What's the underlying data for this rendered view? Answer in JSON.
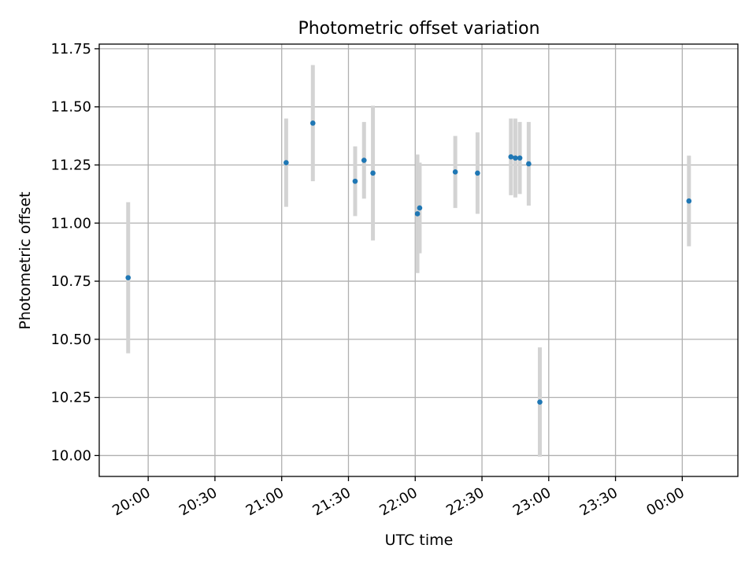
{
  "chart_data": {
    "type": "scatter",
    "title": "Photometric offset variation",
    "xlabel": "UTC time",
    "ylabel": "Photometric offset",
    "xlim": [
      "19:38",
      "00:25"
    ],
    "ylim": [
      9.91,
      11.77
    ],
    "grid": true,
    "x_ticks": [
      {
        "time": "20:00",
        "label": "20:00"
      },
      {
        "time": "20:30",
        "label": "20:30"
      },
      {
        "time": "21:00",
        "label": "21:00"
      },
      {
        "time": "21:30",
        "label": "21:30"
      },
      {
        "time": "22:00",
        "label": "22:00"
      },
      {
        "time": "22:30",
        "label": "22:30"
      },
      {
        "time": "23:00",
        "label": "23:00"
      },
      {
        "time": "23:30",
        "label": "23:30"
      },
      {
        "time": "00:00",
        "label": "00:00"
      }
    ],
    "y_ticks": [
      "10.00",
      "10.25",
      "10.50",
      "10.75",
      "11.00",
      "11.25",
      "11.50",
      "11.75"
    ],
    "point_color": "#1f77b4",
    "errorbar_color": "#d3d3d3",
    "points": [
      {
        "time": "19:51",
        "y": 10.765,
        "err": 0.325
      },
      {
        "time": "21:02",
        "y": 11.26,
        "err": 0.19
      },
      {
        "time": "21:14",
        "y": 11.43,
        "err": 0.25
      },
      {
        "time": "21:33",
        "y": 11.18,
        "err": 0.15
      },
      {
        "time": "21:37",
        "y": 11.27,
        "err": 0.165
      },
      {
        "time": "21:41",
        "y": 11.215,
        "err": 0.29
      },
      {
        "time": "22:01",
        "y": 11.04,
        "err": 0.255
      },
      {
        "time": "22:02",
        "y": 11.065,
        "err": 0.195
      },
      {
        "time": "22:18",
        "y": 11.22,
        "err": 0.155
      },
      {
        "time": "22:28",
        "y": 11.215,
        "err": 0.175
      },
      {
        "time": "22:43",
        "y": 11.285,
        "err": 0.165
      },
      {
        "time": "22:45",
        "y": 11.28,
        "err": 0.17
      },
      {
        "time": "22:47",
        "y": 11.28,
        "err": 0.155
      },
      {
        "time": "22:51",
        "y": 11.255,
        "err": 0.18
      },
      {
        "time": "22:56",
        "y": 10.23,
        "err": 0.235
      },
      {
        "time": "00:03",
        "y": 11.095,
        "err": 0.195
      }
    ]
  }
}
